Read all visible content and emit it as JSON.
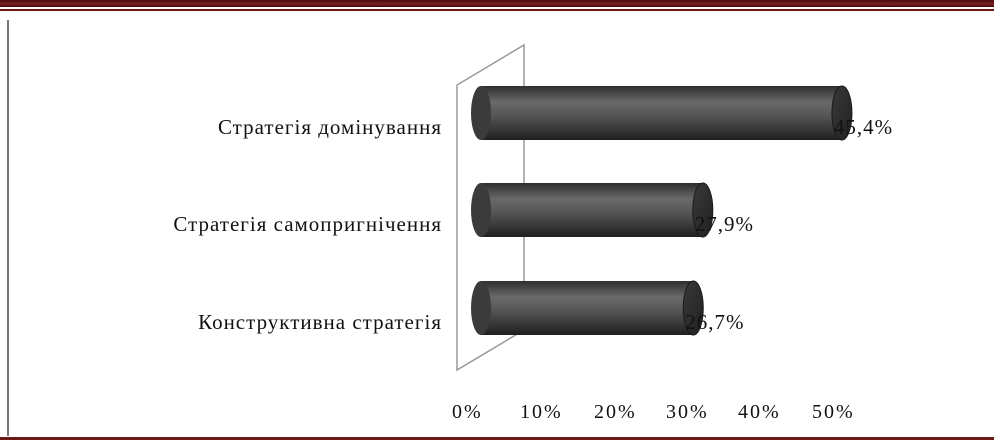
{
  "chart_data": {
    "type": "bar",
    "orientation": "horizontal",
    "style": "3d-cylinder",
    "categories": [
      "Стратегія домінування",
      "Стратегія самопригнічення",
      "Конструктивна стратегія"
    ],
    "values": [
      45.4,
      27.9,
      26.7
    ],
    "value_labels": [
      "45,4%",
      "27,9%",
      "26,7%"
    ],
    "xlim": [
      0,
      50
    ],
    "x_ticks": [
      "0%",
      "10%",
      "20%",
      "30%",
      "40%",
      "50%"
    ],
    "grid": false,
    "legend": "none",
    "bar_color": "#4f4f4f"
  }
}
